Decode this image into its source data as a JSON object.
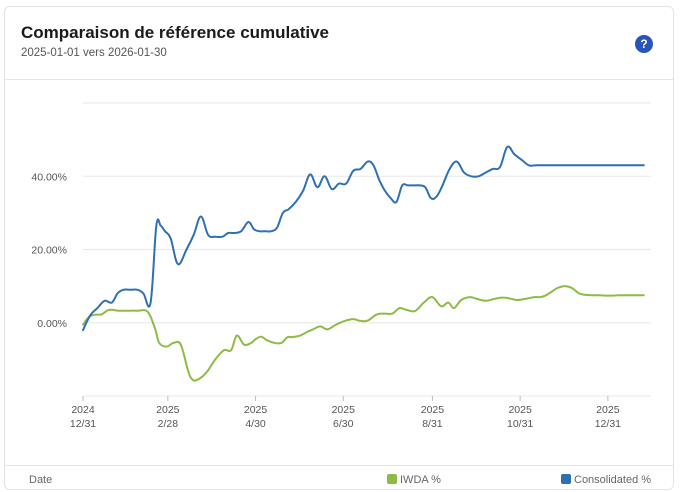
{
  "header": {
    "title": "Comparaison de référence cumulative",
    "subtitle": "2025-01-01 vers 2026-01-30",
    "help_symbol": "?"
  },
  "colors": {
    "IWDA": "#8dbb46",
    "Consolidated": "#2f6fb3",
    "grid": "#e8e8e8"
  },
  "legend": {
    "date_label": "Date",
    "series1_label": "IWDA %",
    "series2_label": "Consolidated %"
  },
  "chart_data": {
    "type": "line",
    "title": "Comparaison de référence cumulative",
    "xlabel": "Date",
    "ylabel": "",
    "ylim": [
      -20,
      60
    ],
    "yticks": [
      0,
      20,
      40
    ],
    "ytick_labels": [
      "0.00%",
      "20.00%",
      "40.00%"
    ],
    "xticks": [
      {
        "day": 0,
        "label": [
          "2024",
          "12/31"
        ]
      },
      {
        "day": 59,
        "label": [
          "2025",
          "2/28"
        ]
      },
      {
        "day": 120,
        "label": [
          "2025",
          "4/30"
        ]
      },
      {
        "day": 181,
        "label": [
          "2025",
          "6/30"
        ]
      },
      {
        "day": 243,
        "label": [
          "2025",
          "8/31"
        ]
      },
      {
        "day": 304,
        "label": [
          "2025",
          "10/31"
        ]
      },
      {
        "day": 365,
        "label": [
          "2025",
          "12/31"
        ]
      }
    ],
    "x_domain": [
      0,
      395
    ],
    "series": [
      {
        "name": "IWDA %",
        "x": [
          0,
          4,
          8,
          13,
          18,
          25,
          32,
          38,
          45,
          50,
          53,
          58,
          63,
          68,
          73,
          76,
          80,
          86,
          92,
          98,
          103,
          107,
          112,
          117,
          120,
          124,
          128,
          133,
          138,
          142,
          146,
          151,
          156,
          160,
          165,
          170,
          176,
          182,
          188,
          193,
          198,
          204,
          209,
          215,
          220,
          225,
          231,
          237,
          243,
          249,
          254,
          258,
          263,
          269,
          274,
          280,
          286,
          290,
          294,
          298,
          302,
          306,
          310,
          314,
          318,
          322,
          326,
          330,
          335,
          340,
          345,
          350,
          355,
          360,
          364,
          368,
          372,
          376,
          381,
          386,
          390
        ],
        "values": [
          -0.5,
          1.5,
          2.2,
          2.3,
          3.5,
          3.3,
          3.3,
          3.3,
          3.0,
          -1.5,
          -5.5,
          -6.5,
          -5.5,
          -6.0,
          -13.0,
          -15.5,
          -15.5,
          -13.5,
          -10.0,
          -7.5,
          -7.5,
          -3.5,
          -6.0,
          -5.5,
          -4.5,
          -3.8,
          -4.8,
          -5.5,
          -5.5,
          -4.0,
          -3.9,
          -3.5,
          -2.5,
          -1.8,
          -1.0,
          -1.8,
          -0.5,
          0.5,
          1.0,
          0.5,
          0.6,
          2.2,
          2.5,
          2.5,
          4.0,
          3.5,
          3.2,
          5.5,
          7.0,
          4.5,
          5.5,
          4.0,
          6.2,
          7.0,
          6.5,
          6.0,
          6.5,
          6.8,
          6.8,
          6.5,
          6.2,
          6.4,
          6.7,
          7.0,
          7.0,
          7.5,
          8.5,
          9.5,
          10.0,
          9.5,
          8.0,
          7.6,
          7.5,
          7.5,
          7.4,
          7.4,
          7.5,
          7.5,
          7.5,
          7.5,
          7.5
        ]
      },
      {
        "name": "Consolidated %",
        "x": [
          0,
          5,
          10,
          15,
          20,
          24,
          28,
          33,
          38,
          42,
          47,
          51,
          54,
          57,
          61,
          66,
          72,
          77,
          82,
          87,
          92,
          97,
          101,
          105,
          110,
          115,
          119,
          123,
          127,
          131,
          135,
          139,
          143,
          148,
          153,
          158,
          163,
          168,
          173,
          178,
          183,
          188,
          193,
          198,
          202,
          206,
          210,
          214,
          218,
          222,
          226,
          230,
          234,
          238,
          242,
          246,
          250,
          255,
          260,
          265,
          270,
          275,
          280,
          285,
          290,
          295,
          300,
          305,
          310,
          315,
          320,
          325,
          330,
          335,
          340,
          345,
          350,
          355,
          360,
          365,
          370,
          375,
          380,
          385,
          390
        ],
        "values": [
          -2,
          2,
          4,
          6,
          5.5,
          8,
          9,
          9,
          9,
          8,
          5.5,
          26.5,
          26.5,
          25,
          23,
          16,
          20,
          24,
          29,
          24,
          23.5,
          23.5,
          24.5,
          24.5,
          25,
          27.5,
          25.5,
          25,
          25,
          25,
          26,
          30,
          31,
          33,
          36,
          40.5,
          37,
          40,
          36.5,
          38,
          38,
          41.5,
          42,
          44,
          43,
          39,
          36,
          34,
          33,
          37.5,
          37.5,
          37.5,
          37.5,
          37,
          34,
          34.5,
          37.5,
          42,
          44,
          41,
          40,
          40,
          41,
          42,
          42.5,
          48,
          46,
          44.5,
          43,
          43,
          43,
          43,
          43,
          43,
          43,
          43,
          43,
          43,
          43,
          43,
          43,
          43,
          43,
          43,
          43
        ]
      }
    ]
  }
}
